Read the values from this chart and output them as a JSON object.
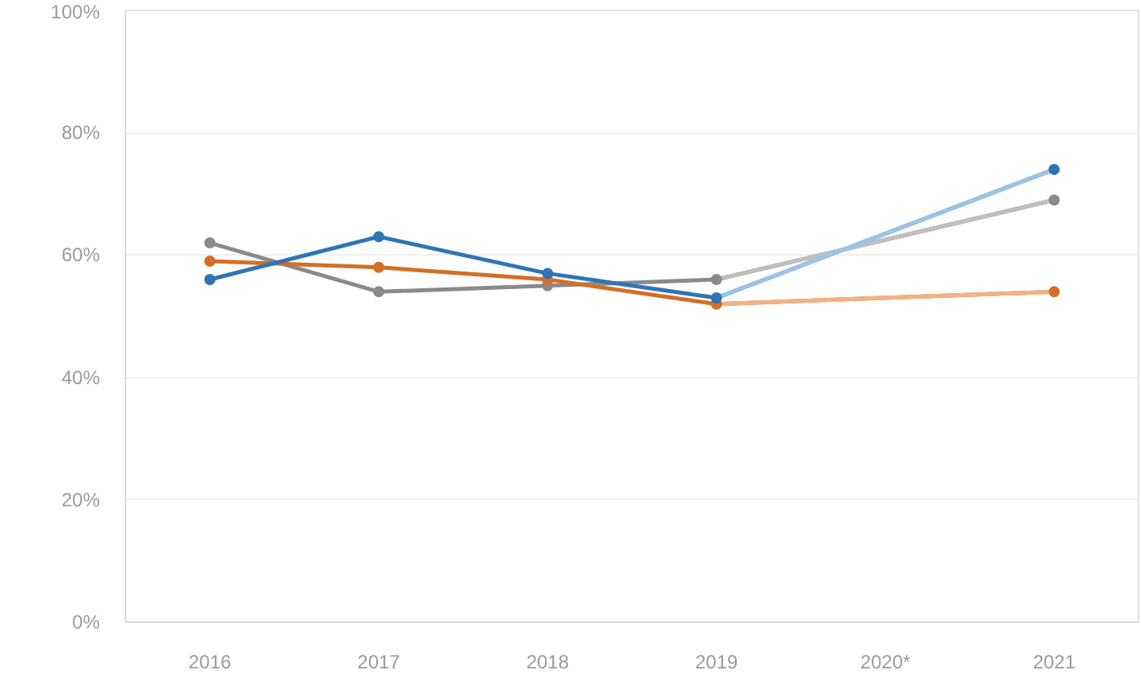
{
  "chart_data": {
    "type": "line",
    "x": [
      2016,
      2017,
      2018,
      2019,
      2021
    ],
    "xlim": [
      2015.5,
      2021.5
    ],
    "xticks": [
      2016,
      2017,
      2018,
      2019,
      {
        "value": 2020,
        "label": "2020*"
      },
      2021
    ],
    "ylim": [
      0,
      100
    ],
    "yticks": [
      {
        "value": 0,
        "label": "0%"
      },
      {
        "value": 20,
        "label": "20%"
      },
      {
        "value": 40,
        "label": "40%"
      },
      {
        "value": 60,
        "label": "60%"
      },
      {
        "value": 80,
        "label": "80%"
      },
      {
        "value": 100,
        "label": "100%"
      }
    ],
    "grid": "y",
    "marker": "circle",
    "line_style": "solid",
    "series": [
      {
        "color": "#8a8a8a",
        "values": [
          62,
          54,
          55,
          56,
          69
        ]
      },
      {
        "color": "#d46f27",
        "values": [
          59,
          58,
          56,
          52,
          54
        ]
      },
      {
        "color": "#2e75b6",
        "values": [
          56,
          63,
          57,
          53,
          74
        ]
      },
      {
        "color": "#bfbfbf",
        "values": [
          null,
          null,
          null,
          56,
          69
        ],
        "marker": "none"
      },
      {
        "color": "#f4b183",
        "values": [
          null,
          null,
          null,
          52,
          54
        ],
        "marker": "none"
      },
      {
        "color": "#9dc3e6",
        "values": [
          null,
          null,
          null,
          53,
          74
        ],
        "marker": "none"
      }
    ]
  }
}
